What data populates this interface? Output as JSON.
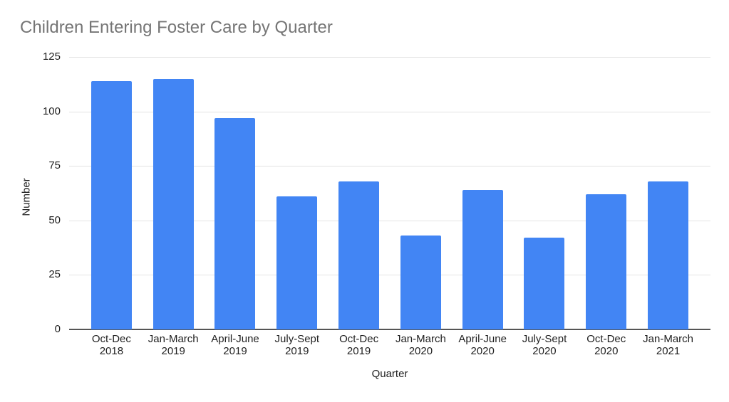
{
  "chart_data": {
    "type": "bar",
    "title": "Children Entering Foster Care by Quarter",
    "xlabel": "Quarter",
    "ylabel": "Number",
    "categories": [
      "Oct-Dec 2018",
      "Jan-March 2019",
      "April-June 2019",
      "July-Sept 2019",
      "Oct-Dec 2019",
      "Jan-March 2020",
      "April-June 2020",
      "July-Sept 2020",
      "Oct-Dec 2020",
      "Jan-March 2021"
    ],
    "values": [
      114,
      115,
      97,
      61,
      68,
      43,
      64,
      42,
      62,
      68
    ],
    "ylim": [
      0,
      125
    ],
    "yticks": [
      0,
      25,
      50,
      75,
      100,
      125
    ],
    "grid": true,
    "legend": "none",
    "bar_color": "#4285f4",
    "title_color": "#757575",
    "gridline_color": "#e3e3e3",
    "axis_line_color": "#555555"
  }
}
